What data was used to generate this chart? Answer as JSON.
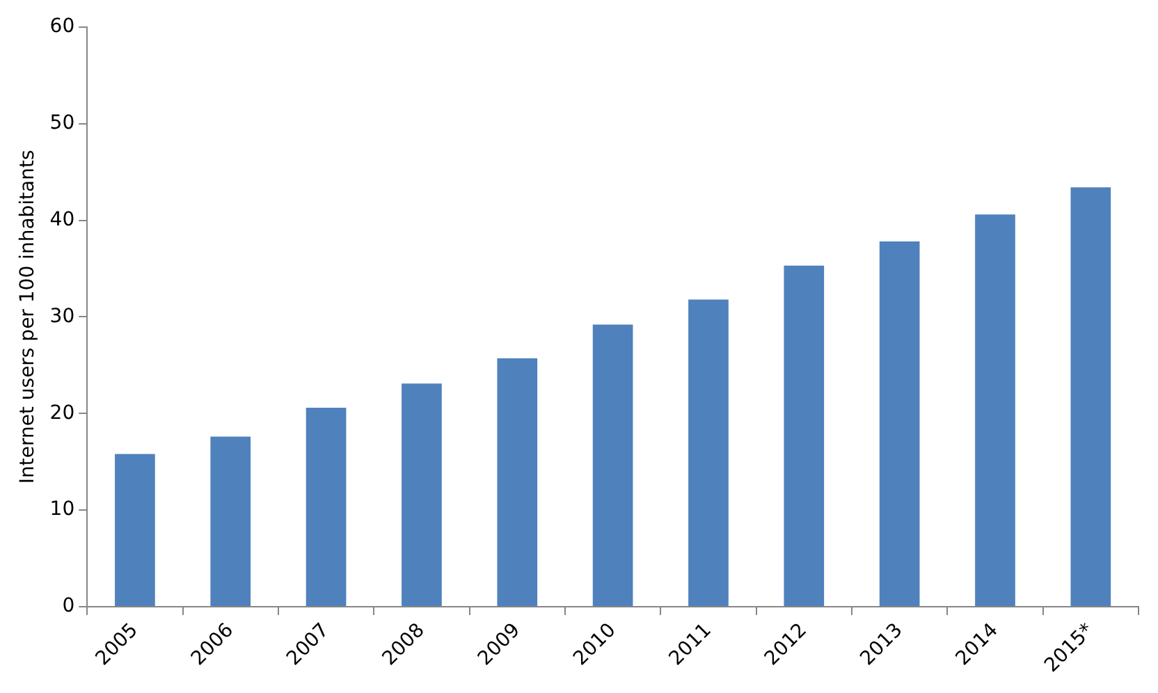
{
  "chart_data": {
    "type": "bar",
    "ylabel": "Internet users per 100 inhabitants",
    "categories": [
      "2005",
      "2006",
      "2007",
      "2008",
      "2009",
      "2010",
      "2011",
      "2012",
      "2013",
      "2014",
      "2015*"
    ],
    "values": [
      15.8,
      17.6,
      20.6,
      23.1,
      25.7,
      29.2,
      31.8,
      35.3,
      37.8,
      40.6,
      43.4
    ],
    "color": "#4f81bd",
    "ylim": [
      0,
      60
    ],
    "yticks": [
      0,
      10,
      20,
      30,
      40,
      50,
      60
    ],
    "grid": false,
    "legend": false
  }
}
